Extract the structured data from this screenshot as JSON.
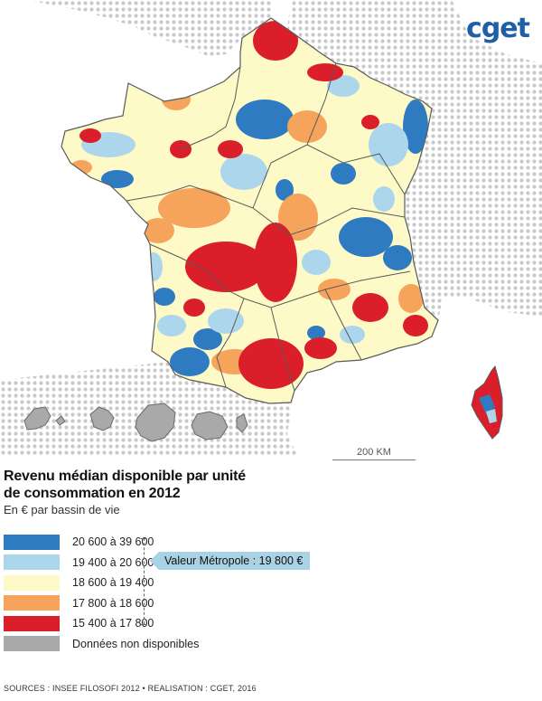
{
  "logo": "cget",
  "scale_label": "200 KM",
  "title_line1": "Revenu médian disponible par unité",
  "title_line2": "de consommation en 2012",
  "subtitle": "En € par bassin de vie",
  "legend": [
    {
      "label": "20 600 à 39 600",
      "color": "#2f7bc2"
    },
    {
      "label": "19 400 à 20 600",
      "color": "#acd6ec"
    },
    {
      "label": "18 600 à 19 400",
      "color": "#fdfac8"
    },
    {
      "label": "17 800 à 18 600",
      "color": "#f6a35c"
    },
    {
      "label": "15 400 à 17 800",
      "color": "#db1f2a"
    },
    {
      "label": "Données non disponibles",
      "color": "#a9a9a9"
    }
  ],
  "callout": "Valeur Métropole : 19 800 €",
  "sources": "SOURCES : INSEE FILOSOFI 2012 • REALISATION : CGET, 2016",
  "colors": {
    "dots": "#c9c9c9",
    "boundary": "#5a5a5a"
  }
}
